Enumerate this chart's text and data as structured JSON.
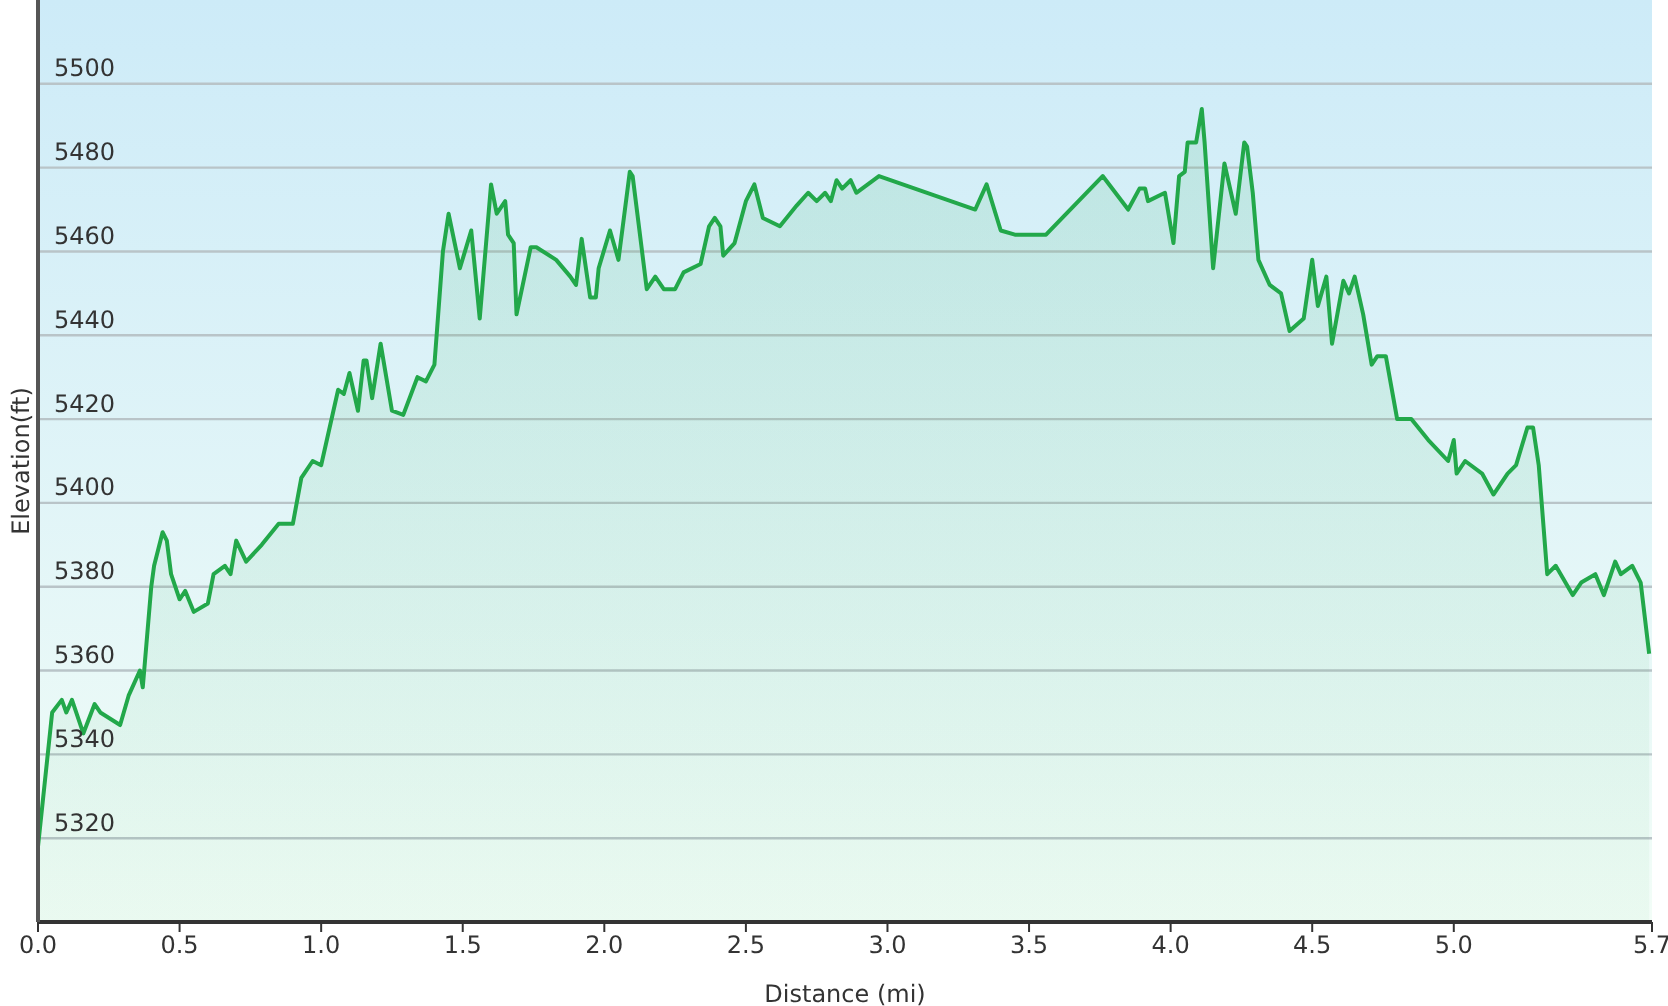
{
  "chart_data": {
    "type": "area",
    "xlabel": "Distance  (mi)",
    "ylabel": "Elevation(ft)",
    "xlim": [
      0,
      5.7
    ],
    "ylim": [
      5300,
      5520
    ],
    "xticks": [
      {
        "value": 0,
        "label": "0.0"
      },
      0.5,
      {
        "value": 1,
        "label": "1.0"
      },
      1.5,
      {
        "value": 2,
        "label": "2.0"
      },
      2.5,
      {
        "value": 3,
        "label": "3.0"
      },
      3.5,
      {
        "value": 4,
        "label": "4.0"
      },
      4.5,
      {
        "value": 5,
        "label": "5.0"
      },
      5.7
    ],
    "yticks": [
      5320,
      5340,
      5360,
      5380,
      5400,
      5420,
      5440,
      5460,
      5480,
      5500
    ],
    "grid": "y",
    "series": [
      {
        "color": "#22a84a",
        "x": [
          0,
          0.05,
          0.084,
          0.1,
          0.12,
          0.16,
          0.2,
          0.22,
          0.29,
          0.32,
          0.36,
          0.37,
          0.4,
          0.41,
          0.44,
          0.455,
          0.47,
          0.5,
          0.52,
          0.55,
          0.6,
          0.62,
          0.66,
          0.68,
          0.7,
          0.735,
          0.79,
          0.85,
          0.9,
          0.93,
          0.97,
          1.0,
          1.06,
          1.08,
          1.1,
          1.13,
          1.15,
          1.16,
          1.18,
          1.21,
          1.25,
          1.29,
          1.34,
          1.37,
          1.4,
          1.43,
          1.45,
          1.49,
          1.53,
          1.56,
          1.6,
          1.62,
          1.65,
          1.66,
          1.68,
          1.69,
          1.74,
          1.76,
          1.83,
          1.88,
          1.9,
          1.92,
          1.95,
          1.97,
          1.98,
          2.02,
          2.05,
          2.09,
          2.1,
          2.15,
          2.18,
          2.21,
          2.25,
          2.28,
          2.34,
          2.37,
          2.39,
          2.41,
          2.42,
          2.46,
          2.5,
          2.53,
          2.56,
          2.62,
          2.68,
          2.72,
          2.75,
          2.78,
          2.8,
          2.82,
          2.84,
          2.87,
          2.89,
          2.97,
          3.31,
          3.35,
          3.4,
          3.45,
          3.56,
          3.76,
          3.85,
          3.89,
          3.91,
          3.92,
          3.98,
          4.01,
          4.03,
          4.05,
          4.06,
          4.09,
          4.11,
          4.12,
          4.15,
          4.19,
          4.23,
          4.26,
          4.27,
          4.29,
          4.31,
          4.35,
          4.39,
          4.42,
          4.47,
          4.5,
          4.52,
          4.55,
          4.57,
          4.61,
          4.63,
          4.65,
          4.68,
          4.71,
          4.73,
          4.76,
          4.8,
          4.85,
          4.91,
          4.98,
          5.0,
          5.01,
          5.04,
          5.1,
          5.14,
          5.19,
          5.22,
          5.26,
          5.28,
          5.3,
          5.33,
          5.36,
          5.42,
          5.45,
          5.5,
          5.53,
          5.57,
          5.59,
          5.63,
          5.66,
          5.69
        ],
        "values": [
          5318,
          5350,
          5353,
          5350,
          5353,
          5345,
          5352,
          5350,
          5347,
          5354,
          5360,
          5356,
          5380,
          5385,
          5393,
          5391,
          5383,
          5377,
          5379,
          5374,
          5376,
          5383,
          5385,
          5383,
          5391,
          5386,
          5390,
          5395,
          5395,
          5406,
          5410,
          5409,
          5427,
          5426,
          5431,
          5422,
          5434,
          5434,
          5425,
          5438,
          5422,
          5421,
          5430,
          5429,
          5433,
          5460,
          5469,
          5456,
          5465,
          5444,
          5476,
          5469,
          5472,
          5464,
          5462,
          5445,
          5461,
          5461,
          5458,
          5454,
          5452,
          5463,
          5449,
          5449,
          5456,
          5465,
          5458,
          5479,
          5478,
          5451,
          5454,
          5451,
          5451,
          5455,
          5457,
          5466,
          5468,
          5466,
          5459,
          5462,
          5472,
          5476,
          5468,
          5466,
          5471,
          5474,
          5472,
          5474,
          5472,
          5477,
          5475,
          5477,
          5474,
          5478,
          5470,
          5476,
          5465,
          5464,
          5464,
          5478,
          5470,
          5475,
          5475,
          5472,
          5474,
          5462,
          5478,
          5479,
          5486,
          5486,
          5494,
          5486,
          5456,
          5481,
          5469,
          5486,
          5485,
          5474,
          5458,
          5452,
          5450,
          5441,
          5444,
          5458,
          5447,
          5454,
          5438,
          5453,
          5450,
          5454,
          5445,
          5433,
          5435,
          5435,
          5420,
          5420,
          5415,
          5410,
          5415,
          5407,
          5410,
          5407,
          5402,
          5407,
          5409,
          5418,
          5418,
          5409,
          5383,
          5385,
          5378,
          5381,
          5383,
          5378,
          5386,
          5383,
          5385,
          5381,
          5364
        ]
      }
    ]
  }
}
